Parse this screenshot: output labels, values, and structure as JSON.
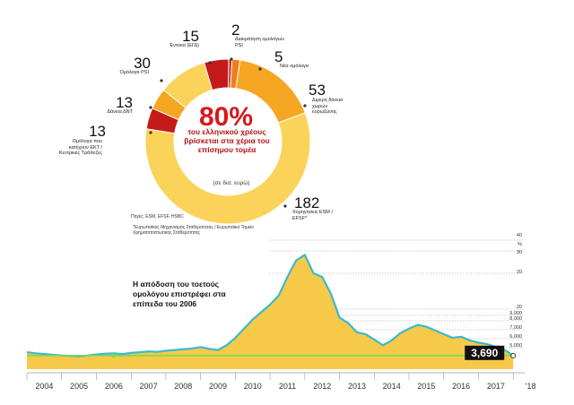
{
  "chart_data": [
    {
      "type": "pie",
      "title": "80%",
      "subtitle": "του ελληνικού χρέους βρίσκεται στα χέρια του επίσημου τομέα",
      "unit_label": "(σε δισ. ευρώ)",
      "source": "Πηγές: ESM, EFSF, HSBC",
      "footnote": "*Ευρωπαϊκός Μηχανισμός Σταθερότητας / Ευρωπαϊκό Ταμείο Χρηματοπιστωτικής Σταθερότητας",
      "slices": [
        {
          "value": 2,
          "label": "Διακράτηση ομολόγων PSI",
          "color": "#d41f1f"
        },
        {
          "value": 5,
          "label": "Νέα ομόλογα",
          "color": "#f07d1a"
        },
        {
          "value": 53,
          "label": "Διμερή δάνεια χωρών ευρωζώνης",
          "color": "#f5a623"
        },
        {
          "value": 182,
          "label": "Χορηγήσεις ESM / EFSF*",
          "color": "#fbd35a"
        },
        {
          "value": 13,
          "label": "Ομόλογα που κατέχουν ΕΚΤ / Κεντρικές Τράπεζες",
          "color": "#c41a1a"
        },
        {
          "value": 13,
          "label": "Δάνεια ΔΝΤ",
          "color": "#f5a623"
        },
        {
          "value": 30,
          "label": "Ομόλογα PSI",
          "color": "#fbd35a"
        },
        {
          "value": 15,
          "label": "Έντοκα (ΕΓΔ)",
          "color": "#c41a1a"
        }
      ]
    },
    {
      "type": "area",
      "title": "Η απόδοση του τοετούς ομολόγου επιστρέφει στα επίπεδα του 2006",
      "x_ticks": [
        "2004",
        "2005",
        "2006",
        "2007",
        "2008",
        "2009",
        "2010",
        "2011",
        "2012",
        "2013",
        "2014",
        "2015",
        "2016",
        "2017",
        "'18"
      ],
      "y_ticks": [
        "40",
        "%",
        "30",
        "20",
        "20",
        "9,000",
        "8,000",
        "7,000",
        "6,000",
        "5,000"
      ],
      "last_value_label": "3,690",
      "series_color": "#f7c948",
      "line_color": "#3cb8cf",
      "baseline_color": "#7ed957",
      "x": [
        2004.0,
        2004.25,
        2004.5,
        2004.75,
        2005.0,
        2005.25,
        2005.5,
        2005.75,
        2006.0,
        2006.25,
        2006.5,
        2006.75,
        2007.0,
        2007.25,
        2007.5,
        2007.75,
        2008.0,
        2008.25,
        2008.5,
        2008.75,
        2009.0,
        2009.25,
        2009.5,
        2009.75,
        2010.0,
        2010.25,
        2010.5,
        2010.75,
        2011.0,
        2011.25,
        2011.5,
        2011.75,
        2012.0,
        2012.25,
        2012.5,
        2012.75,
        2013.0,
        2013.25,
        2013.5,
        2013.75,
        2014.0,
        2014.25,
        2014.5,
        2014.75,
        2015.0,
        2015.25,
        2015.5,
        2015.75,
        2016.0,
        2016.25,
        2016.5,
        2016.75,
        2017.0,
        2017.25,
        2017.5,
        2017.75,
        2018.0
      ],
      "values": [
        4.6,
        4.3,
        4.1,
        3.9,
        3.7,
        3.6,
        3.5,
        3.7,
        4.0,
        4.2,
        4.3,
        4.1,
        4.4,
        4.6,
        4.8,
        4.7,
        5.0,
        5.2,
        5.4,
        5.6,
        6.0,
        5.5,
        5.2,
        6.5,
        8.5,
        11.0,
        13.5,
        15.5,
        17.5,
        20.0,
        25.0,
        29.5,
        31.0,
        26.0,
        25.0,
        20.5,
        14.0,
        12.5,
        10.0,
        9.5,
        8.0,
        6.5,
        7.8,
        9.8,
        11.0,
        12.0,
        11.5,
        10.5,
        9.5,
        8.5,
        8.8,
        7.8,
        7.2,
        6.8,
        6.0,
        5.2,
        3.69
      ]
    }
  ]
}
